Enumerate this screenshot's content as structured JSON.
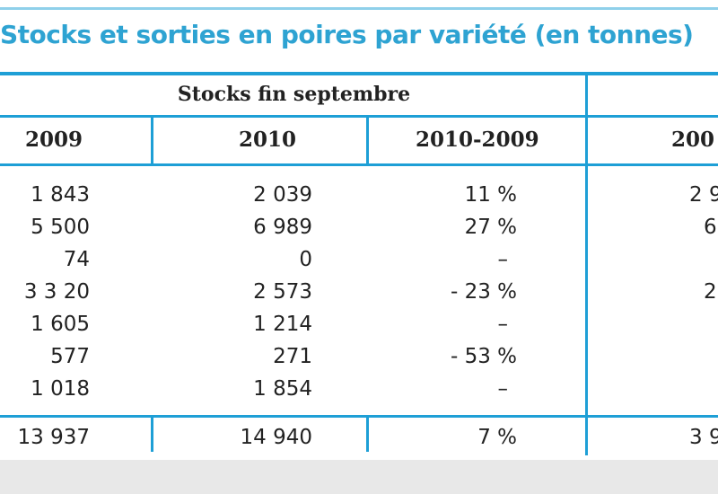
{
  "title": "Stocks et sorties en poires par variété (en tonnes)",
  "group_header": "Stocks fin septembre",
  "columns": [
    "2009",
    "2010",
    "2010-2009",
    "200"
  ],
  "rows": [
    [
      "1 843",
      "2 039",
      "11 %",
      "2 9"
    ],
    [
      "5 500",
      "6 989",
      "27 %",
      "6"
    ],
    [
      "74",
      "0",
      "–",
      ""
    ],
    [
      "3 3 20",
      "2 573",
      "- 23 %",
      "2"
    ],
    [
      "1 605",
      "1 214",
      "–",
      ""
    ],
    [
      "577",
      "271",
      "- 53 %",
      ""
    ],
    [
      "1 018",
      "1 854",
      "–",
      ""
    ]
  ],
  "total": [
    "13 937",
    "14 940",
    "7 %",
    "3 9"
  ]
}
